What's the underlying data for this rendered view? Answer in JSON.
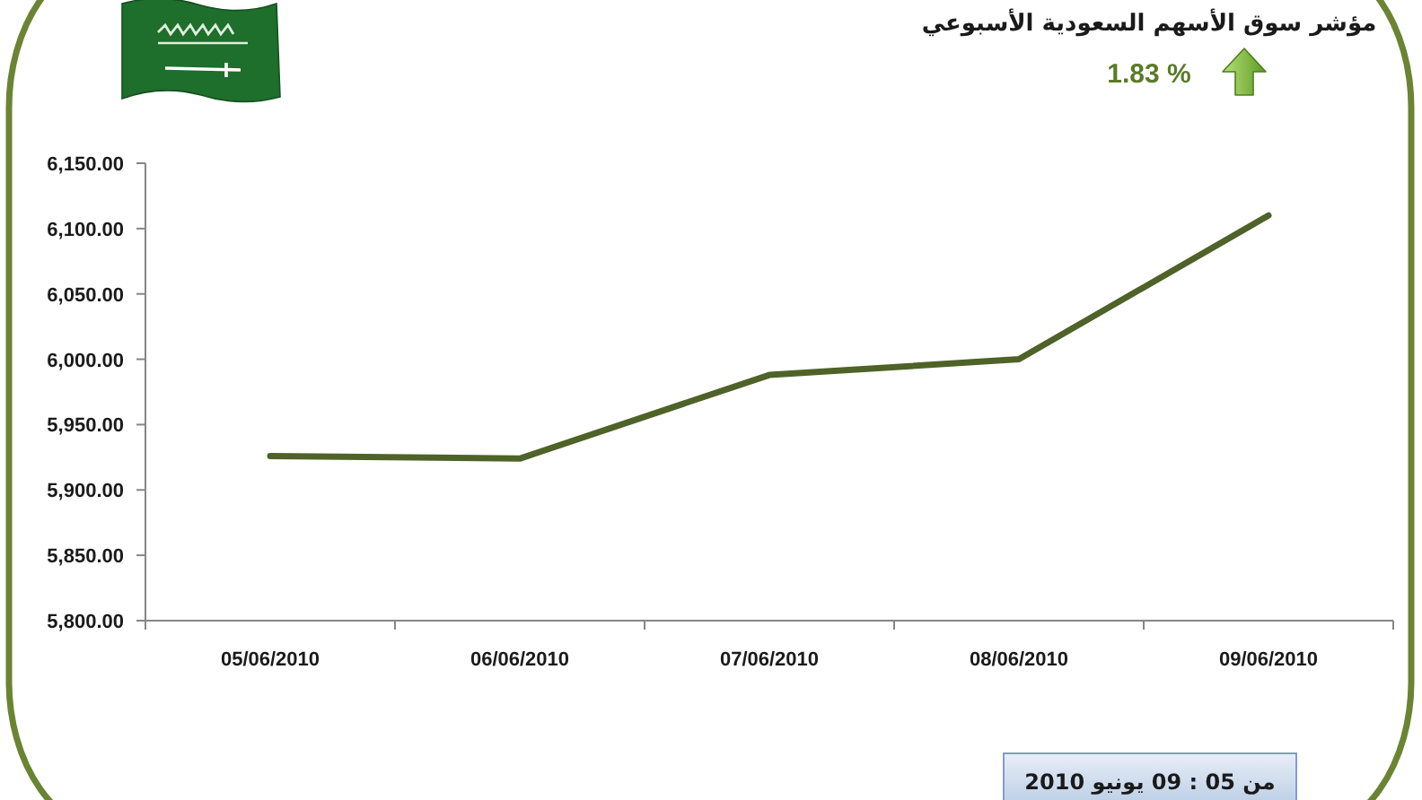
{
  "chart_data": {
    "type": "line",
    "title": "مؤشر سوق الأسهم السعودية الأسبوعي",
    "categories": [
      "05/06/2010",
      "06/06/2010",
      "07/06/2010",
      "08/06/2010",
      "09/06/2010"
    ],
    "series": [
      {
        "color": "#4f6228",
        "values": [
          5926,
          5924,
          5988,
          6000,
          6110
        ]
      }
    ],
    "ylim": [
      5800,
      6150
    ],
    "yticks": [
      {
        "value": 5800,
        "label": "5,800.00"
      },
      {
        "value": 5850,
        "label": "5,850.00"
      },
      {
        "value": 5900,
        "label": "5,900.00"
      },
      {
        "value": 5950,
        "label": "5,950.00"
      },
      {
        "value": 6000,
        "label": "6,000.00"
      },
      {
        "value": 6050,
        "label": "6,050.00"
      },
      {
        "value": 6100,
        "label": "6,100.00"
      },
      {
        "value": 6150,
        "label": "6,150.00"
      }
    ],
    "annotations": [
      "1.83 %",
      "من 05 : 09 يونيو 2010"
    ]
  }
}
